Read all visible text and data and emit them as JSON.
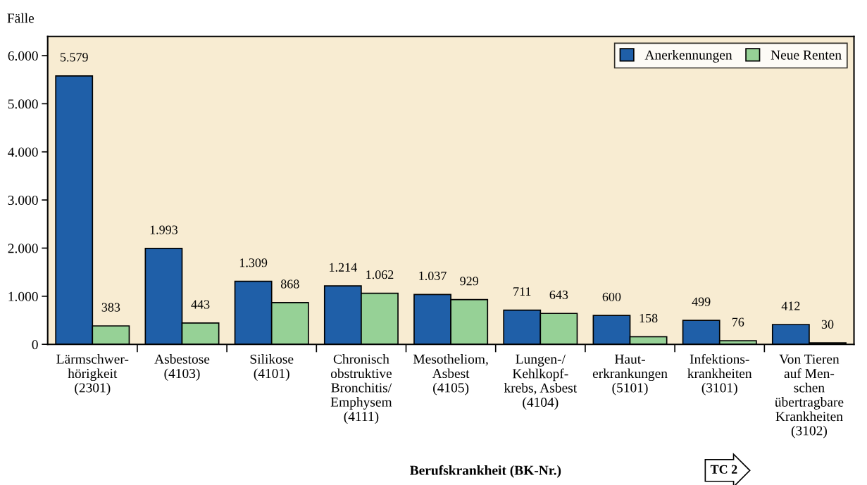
{
  "chart_data": {
    "type": "bar",
    "ylabel": "Fälle",
    "xlabel": "Berufskrankheit (BK-Nr.)",
    "categories": [
      "Lärmschwer-\nhörigkeit\n(2301)",
      "Asbestose\n(4103)",
      "Silikose\n(4101)",
      "Chronisch\nobstruktive\nBronchitis/\nEmphysem\n(4111)",
      "Mesotheliom,\nAsbest\n(4105)",
      "Lungen-/\nKehlkopf-\nkrebs, Asbest\n(4104)",
      "Haut-\nerkrankungen\n(5101)",
      "Infektions-\nkrankheiten\n(3101)",
      "Von Tieren\nauf Men-\nschen\nübertragbare\nKrankheiten\n(3102)"
    ],
    "series": [
      {
        "name": "Anerkennungen",
        "color": "#1f5fa8",
        "values": [
          5579,
          1993,
          1309,
          1214,
          1037,
          711,
          600,
          499,
          412
        ],
        "value_labels": [
          "5.579",
          "1.993",
          "1.309",
          "1.214",
          "1.037",
          "711",
          "600",
          "499",
          "412"
        ]
      },
      {
        "name": "Neue Renten",
        "color": "#96d196",
        "values": [
          383,
          443,
          868,
          1062,
          929,
          643,
          158,
          76,
          30
        ],
        "value_labels": [
          "383",
          "443",
          "868",
          "1.062",
          "929",
          "643",
          "158",
          "76",
          "30"
        ]
      }
    ],
    "ylim": [
      0,
      6400
    ],
    "yticks": [
      {
        "value": 0,
        "label": "0"
      },
      {
        "value": 1000,
        "label": "1.000"
      },
      {
        "value": 2000,
        "label": "2.000"
      },
      {
        "value": 3000,
        "label": "3.000"
      },
      {
        "value": 4000,
        "label": "4.000"
      },
      {
        "value": 5000,
        "label": "5.000"
      },
      {
        "value": 6000,
        "label": "6.000"
      }
    ],
    "grid": false,
    "legend": "top right",
    "annotations": [
      "TC 2"
    ]
  }
}
